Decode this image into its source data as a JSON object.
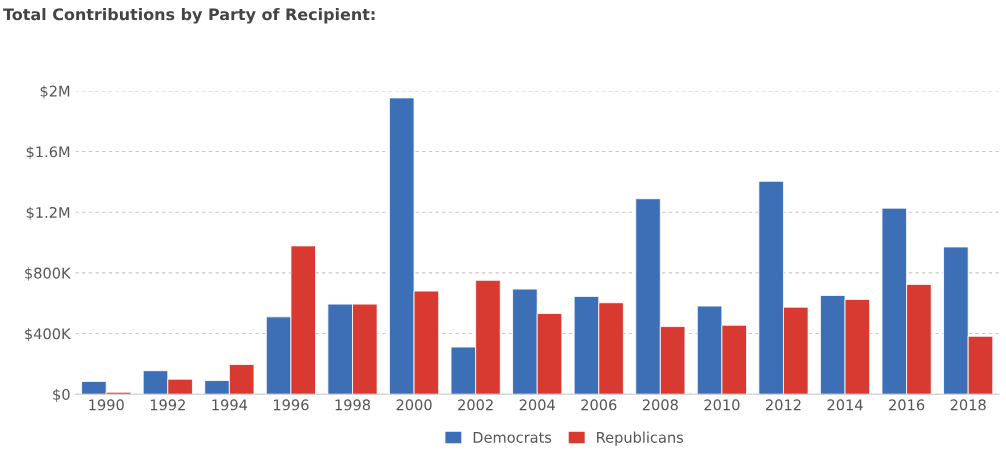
{
  "chart_data": {
    "type": "bar",
    "title": "Total Contributions by Party of Recipient:",
    "categories": [
      "1990",
      "1992",
      "1994",
      "1996",
      "1998",
      "2000",
      "2002",
      "2004",
      "2006",
      "2008",
      "2010",
      "2012",
      "2014",
      "2016",
      "2018"
    ],
    "series": [
      {
        "name": "Democrats",
        "color": "#3d6fb6",
        "values": [
          84000,
          155000,
          90000,
          510000,
          594000,
          1954000,
          311000,
          693000,
          645000,
          1289000,
          581000,
          1404000,
          651000,
          1227000,
          971000
        ]
      },
      {
        "name": "Republicans",
        "color": "#d83a31",
        "values": [
          13000,
          99000,
          196000,
          978000,
          594000,
          680000,
          751000,
          532000,
          603000,
          446000,
          455000,
          574000,
          625000,
          724000,
          382000
        ]
      }
    ],
    "ylim": [
      0,
      2000000
    ],
    "yticks": [
      {
        "value": 0,
        "label": "$0"
      },
      {
        "value": 400000,
        "label": "$400K"
      },
      {
        "value": 800000,
        "label": "$800K"
      },
      {
        "value": 1200000,
        "label": "$1.2M"
      },
      {
        "value": 1600000,
        "label": "$1.6M"
      },
      {
        "value": 2000000,
        "label": "$2M"
      }
    ],
    "grid": "y",
    "legend": "bottom"
  }
}
